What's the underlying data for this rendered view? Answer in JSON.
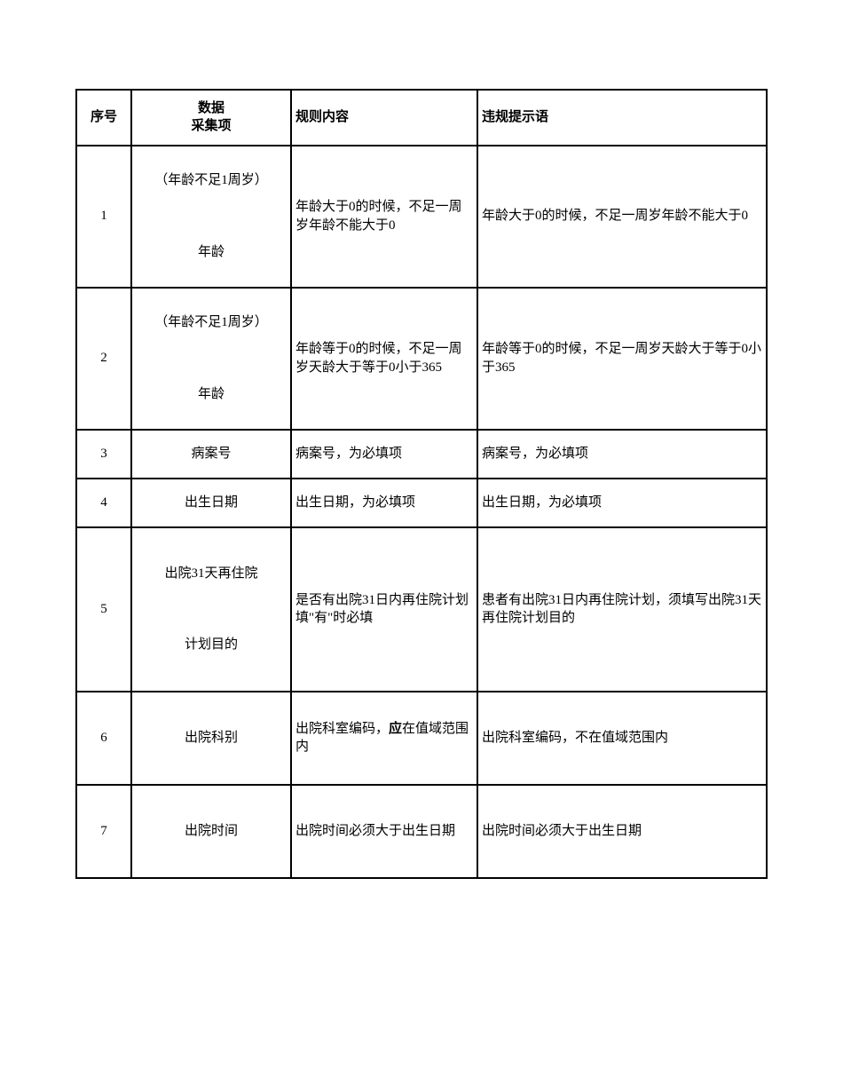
{
  "table": {
    "headers": {
      "seq": "序号",
      "item_line1": "数据",
      "item_line2": "采集项",
      "rule": "规则内容",
      "msg": "违规提示语"
    },
    "rows": [
      {
        "seq": "1",
        "item_main": "（年龄不足1周岁）",
        "item_sub": "年龄",
        "rule": "年龄大于0的时候，不足一周岁年龄不能大于0",
        "msg": "年龄大于0的时候，不足一周岁年龄不能大于0"
      },
      {
        "seq": "2",
        "item_main": "（年龄不足1周岁）",
        "item_sub": "年龄",
        "rule": "年龄等于0的时候，不足一周岁天龄大于等于0小于365",
        "msg": "年龄等于0的时候，不足一周岁天龄大于等于0小于365"
      },
      {
        "seq": "3",
        "item_main": "病案号",
        "item_sub": "",
        "rule": "病案号，为必填项",
        "msg": "病案号，为必填项"
      },
      {
        "seq": "4",
        "item_main": "出生日期",
        "item_sub": "",
        "rule": "出生日期，为必填项",
        "msg": "出生日期，为必填项"
      },
      {
        "seq": "5",
        "item_main": "出院31天再住院",
        "item_sub": "计划目的",
        "rule": "是否有出院31日内再住院计划填\"有\"时必填",
        "msg": "患者有出院31日内再住院计划，须填写出院31天再住院计划目的"
      },
      {
        "seq": "6",
        "item_main": "出院科别",
        "item_sub": "",
        "rule_pre": "出院科室编码，",
        "rule_bold": "应",
        "rule_post": "在值域范围内",
        "msg": "出院科室编码，不在值域范围内"
      },
      {
        "seq": "7",
        "item_main": "出院时间",
        "item_sub": "",
        "rule": "出院时间必须大于出生日期",
        "msg": "出院时间必须大于出生日期"
      }
    ]
  },
  "style": {
    "border_color": "#000000",
    "background_color": "#ffffff",
    "text_color": "#000000",
    "font_size": 15
  }
}
